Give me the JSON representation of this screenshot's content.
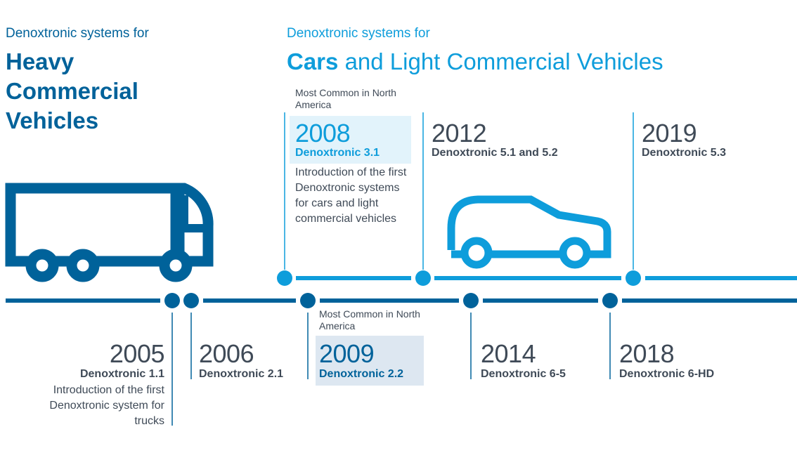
{
  "colors": {
    "dark_blue": "#00629a",
    "light_blue": "#0e9ddb",
    "text": "#3f4a57",
    "highlight_light": "#e2f3fb",
    "highlight_dark": "#dde7f1"
  },
  "heavy": {
    "kicker": "Denoxtronic systems for",
    "title_lines": [
      "Heavy",
      "Commercial",
      "Vehicles"
    ],
    "icon": "truck-icon"
  },
  "cars": {
    "kicker": "Denoxtronic systems for",
    "title_bold": "Cars",
    "title_rest": "and Light Commercial Vehicles",
    "icon": "car-icon"
  },
  "events": {
    "e2005": {
      "year": "2005",
      "model": "Denoxtronic 1.1",
      "desc": "Introduction of the first Denoxtronic system for trucks"
    },
    "e2006": {
      "year": "2006",
      "model": "Denoxtronic 2.1"
    },
    "e2008": {
      "note": "Most Common in North America",
      "year": "2008",
      "model": "Denoxtronic 3.1",
      "desc": "Introduction of the first Denoxtronic systems for cars and light commercial vehicles"
    },
    "e2009": {
      "note": "Most Common in North America",
      "year": "2009",
      "model": "Denoxtronic 2.2"
    },
    "e2012": {
      "year": "2012",
      "model": "Denoxtronic 5.1 and 5.2"
    },
    "e2014": {
      "year": "2014",
      "model": "Denoxtronic 6-5"
    },
    "e2018": {
      "year": "2018",
      "model": "Denoxtronic 6-HD"
    },
    "e2019": {
      "year": "2019",
      "model": "Denoxtronic 5.3"
    }
  }
}
